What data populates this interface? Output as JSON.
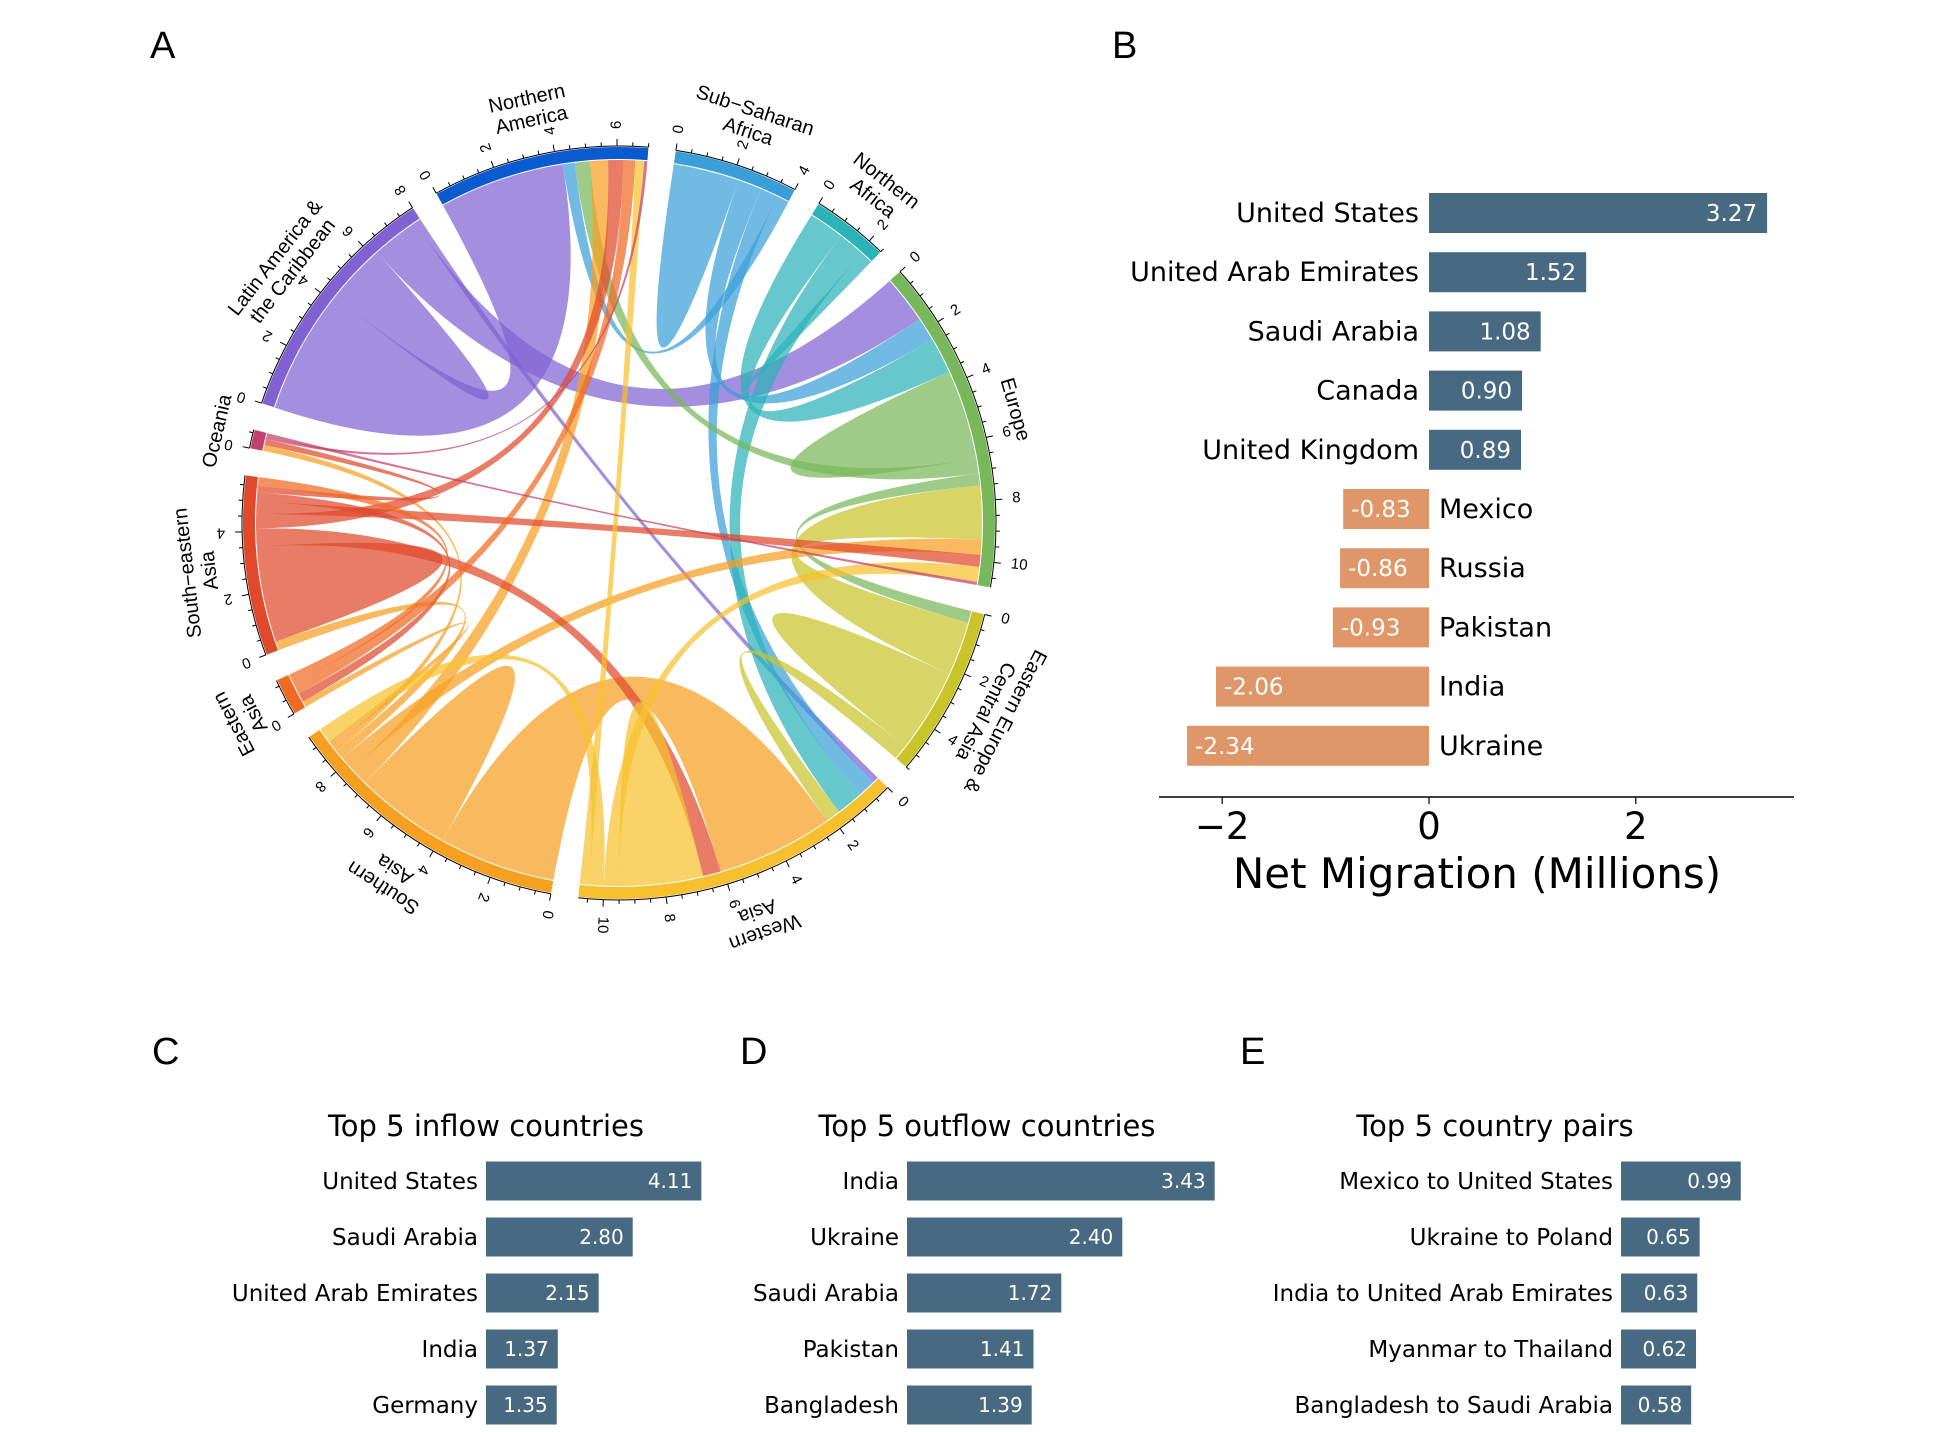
{
  "panel_letters": {
    "a": "A",
    "b": "B",
    "c": "C",
    "d": "D",
    "e": "E"
  },
  "chart_data": [
    {
      "type": "chord",
      "panel": "A",
      "regions": [
        {
          "name": "Northern America",
          "label_lines": [
            "Northern",
            "America"
          ],
          "color": "#0b5bd0",
          "tick_max": 6
        },
        {
          "name": "Sub-Saharan Africa",
          "label_lines": [
            "Sub−Saharan",
            "Africa"
          ],
          "color": "#3a9fd8",
          "tick_max": 4
        },
        {
          "name": "Northern Africa",
          "label_lines": [
            "Northern",
            "Africa"
          ],
          "color": "#2bb3b8",
          "tick_max": 2
        },
        {
          "name": "Europe",
          "label_lines": [
            "Europe"
          ],
          "color": "#78b85a",
          "tick_max": 10
        },
        {
          "name": "Eastern Europe & Central Asia",
          "label_lines": [
            "Eastern Europe &",
            "Central Asia"
          ],
          "color": "#c9c42a",
          "tick_max": 6
        },
        {
          "name": "Western Asia",
          "label_lines": [
            "Western",
            "Asia"
          ],
          "color": "#f7c02e",
          "tick_max": 12
        },
        {
          "name": "Southern Asia",
          "label_lines": [
            "Southern",
            "Asia"
          ],
          "color": "#f6a021",
          "tick_max": 10
        },
        {
          "name": "Eastern Asia",
          "label_lines": [
            "Eastern",
            "Asia"
          ],
          "color": "#f06a22",
          "tick_max": 2
        },
        {
          "name": "South-eastern Asia",
          "label_lines": [
            "South−eastern",
            "Asia"
          ],
          "color": "#e0492c",
          "tick_max": 8
        },
        {
          "name": "Oceania",
          "label_lines": [
            "Oceania"
          ],
          "color": "#c2406c",
          "tick_max": 0
        },
        {
          "name": "Latin America & the Caribbean",
          "label_lines": [
            "Latin America &",
            "the Caribbean"
          ],
          "color": "#8062d2",
          "tick_max": 8
        }
      ],
      "flows": [
        [
          10,
          0,
          4.2
        ],
        [
          10,
          10,
          1.0
        ],
        [
          10,
          3,
          1.6
        ],
        [
          10,
          5,
          0.2
        ],
        [
          1,
          1,
          1.1
        ],
        [
          1,
          3,
          0.8
        ],
        [
          1,
          5,
          0.6
        ],
        [
          1,
          0,
          0.4
        ],
        [
          2,
          3,
          1.2
        ],
        [
          2,
          5,
          0.9
        ],
        [
          2,
          2,
          0.2
        ],
        [
          3,
          3,
          1.5
        ],
        [
          3,
          0,
          0.5
        ],
        [
          3,
          4,
          0.4
        ],
        [
          4,
          3,
          1.8
        ],
        [
          4,
          4,
          1.4
        ],
        [
          4,
          5,
          0.5
        ],
        [
          6,
          5,
          3.9
        ],
        [
          6,
          6,
          1.6
        ],
        [
          6,
          0,
          0.6
        ],
        [
          6,
          3,
          0.5
        ],
        [
          6,
          8,
          0.3
        ],
        [
          6,
          9,
          0.2
        ],
        [
          6,
          7,
          0.2
        ],
        [
          8,
          8,
          1.6
        ],
        [
          8,
          5,
          0.6
        ],
        [
          8,
          0,
          0.5
        ],
        [
          8,
          3,
          0.4
        ],
        [
          8,
          7,
          0.3
        ],
        [
          8,
          9,
          0.2
        ],
        [
          7,
          0,
          0.4
        ],
        [
          7,
          8,
          0.3
        ],
        [
          5,
          5,
          1.4
        ],
        [
          5,
          3,
          0.5
        ],
        [
          5,
          6,
          0.5
        ],
        [
          5,
          0,
          0.3
        ],
        [
          9,
          0,
          0.1
        ],
        [
          9,
          3,
          0.1
        ]
      ]
    },
    {
      "type": "bar",
      "panel": "B",
      "categories": [
        "United States",
        "United Arab Emirates",
        "Saudi Arabia",
        "Canada",
        "United Kingdom",
        "Mexico",
        "Russia",
        "Pakistan",
        "India",
        "Ukraine"
      ],
      "values": [
        3.27,
        1.52,
        1.08,
        0.9,
        0.89,
        -0.83,
        -0.86,
        -0.93,
        -2.06,
        -2.34
      ],
      "value_labels": [
        "3.27",
        "1.52",
        "1.08",
        "0.90",
        "0.89",
        "-0.83",
        "-0.86",
        "-0.93",
        "-2.06",
        "-2.34"
      ],
      "xlabel": "Net Migration (Millions)",
      "xticks": [
        -2,
        0,
        2
      ],
      "xtick_labels": [
        "−2",
        "0",
        "2"
      ],
      "xlim": [
        -2.6,
        3.6
      ],
      "positive_color": "#476a82",
      "negative_color": "#df9769"
    },
    {
      "type": "bar",
      "panel": "C",
      "title": "Top 5 inflow countries",
      "categories": [
        "United States",
        "Saudi Arabia",
        "United Arab Emirates",
        "India",
        "Germany"
      ],
      "values": [
        4.11,
        2.8,
        2.15,
        1.37,
        1.35
      ],
      "value_labels": [
        "4.11",
        "2.80",
        "2.15",
        "1.37",
        "1.35"
      ],
      "color": "#476a82"
    },
    {
      "type": "bar",
      "panel": "D",
      "title": "Top 5 outflow countries",
      "categories": [
        "India",
        "Ukraine",
        "Saudi Arabia",
        "Pakistan",
        "Bangladesh"
      ],
      "values": [
        3.43,
        2.4,
        1.72,
        1.41,
        1.39
      ],
      "value_labels": [
        "3.43",
        "2.40",
        "1.72",
        "1.41",
        "1.39"
      ],
      "color": "#476a82"
    },
    {
      "type": "bar",
      "panel": "E",
      "title": "Top 5 country pairs",
      "categories": [
        "Mexico to United States",
        "Ukraine to Poland",
        "India to United Arab Emirates",
        "Myanmar to Thailand",
        "Bangladesh to Saudi Arabia"
      ],
      "values": [
        0.99,
        0.65,
        0.63,
        0.62,
        0.58
      ],
      "value_labels": [
        "0.99",
        "0.65",
        "0.63",
        "0.62",
        "0.58"
      ],
      "color": "#476a82"
    }
  ]
}
